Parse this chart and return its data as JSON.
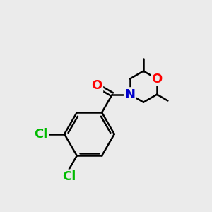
{
  "background_color": "#ebebeb",
  "bond_color": "#000000",
  "bond_width": 1.8,
  "atom_colors": {
    "O": "#ff0000",
    "N": "#0000cc",
    "Cl": "#00bb00",
    "C": "#000000"
  },
  "font_size_atoms": 13,
  "font_size_methyl": 10
}
